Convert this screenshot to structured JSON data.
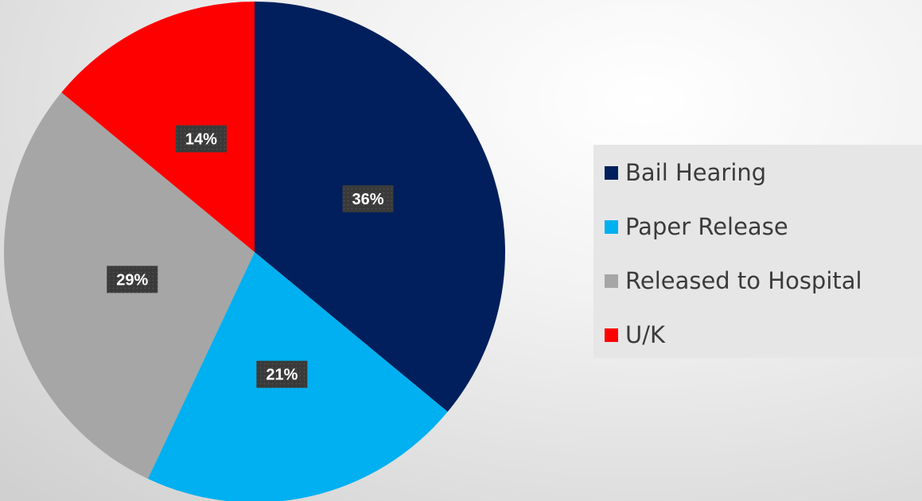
{
  "chart_data": {
    "type": "pie",
    "title": "",
    "categories": [
      "Bail Hearing",
      "Paper Release",
      "Released to Hospital",
      "U/K"
    ],
    "values": [
      36,
      21,
      29,
      14
    ],
    "labels": [
      "36%",
      "21%",
      "29%",
      "14%"
    ],
    "colors": [
      "#001f5c",
      "#00b0f0",
      "#a6a6a6",
      "#ff0000"
    ],
    "legend_position": "right"
  }
}
